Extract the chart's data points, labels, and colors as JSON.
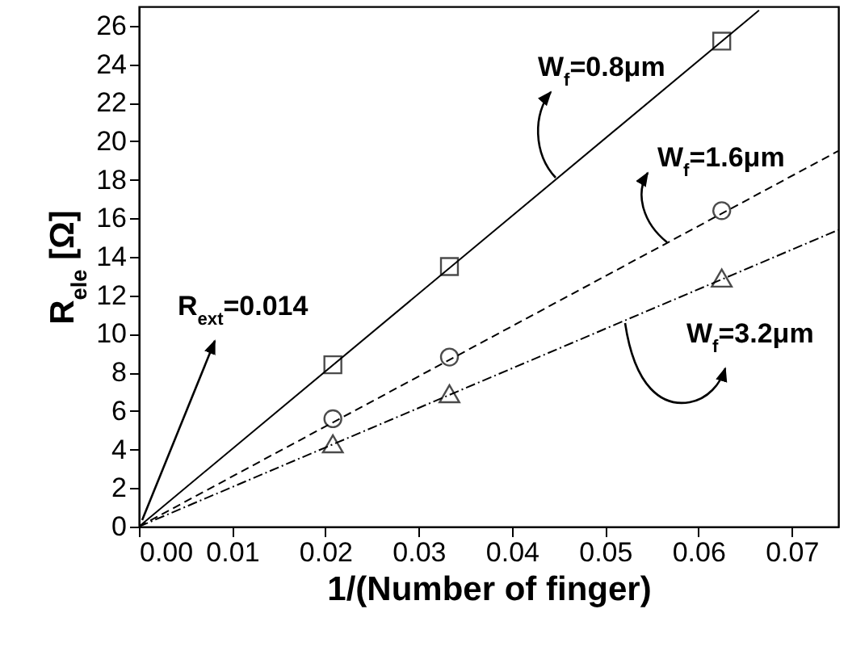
{
  "chart_data": {
    "type": "scatter",
    "xlabel": "1/(Number of finger)",
    "ylabel": "R$_{ele}$ [Ω]",
    "xlim": [
      0,
      0.075
    ],
    "ylim": [
      0,
      27
    ],
    "xticks": [
      {
        "value": 0,
        "label": "0.00"
      },
      {
        "value": 0.01,
        "label": "0.01"
      },
      {
        "value": 0.02,
        "label": "0.02"
      },
      {
        "value": 0.03,
        "label": "0.03"
      },
      {
        "value": 0.04,
        "label": "0.04"
      },
      {
        "value": 0.05,
        "label": "0.05"
      },
      {
        "value": 0.06,
        "label": "0.06"
      },
      {
        "value": 0.07,
        "label": "0.07"
      }
    ],
    "yticks": [
      0,
      2,
      4,
      6,
      8,
      10,
      12,
      14,
      16,
      18,
      20,
      22,
      24,
      26
    ],
    "grid": false,
    "series": [
      {
        "marker": "square",
        "color": "#000000",
        "x": [
          0.0208,
          0.0333,
          0.0625
        ],
        "values": [
          8.4,
          13.5,
          25.2
        ]
      },
      {
        "marker": "circle",
        "color": "#000000",
        "x": [
          0.0208,
          0.0333,
          0.0625
        ],
        "values": [
          5.6,
          8.8,
          16.4
        ]
      },
      {
        "marker": "triangle",
        "color": "#000000",
        "x": [
          0.0208,
          0.0333,
          0.0625
        ],
        "values": [
          4.3,
          6.9,
          12.9
        ]
      },
      {
        "type": "line",
        "line_style": "solid",
        "color": "#000000",
        "x": [
          0,
          0.0665
        ],
        "values": [
          0,
          26.8
        ]
      },
      {
        "type": "line",
        "line_style": "dashed",
        "color": "#000000",
        "x": [
          0,
          0.075
        ],
        "values": [
          0,
          19.5
        ]
      },
      {
        "type": "line",
        "line_style": "dotted",
        "color": "#000000",
        "x": [
          0,
          0.075
        ],
        "values": [
          0,
          15.4
        ]
      }
    ],
    "annotations": [
      "W$_{f}$=0.8μm",
      "W$_{f}$=1.6μm",
      "W$_{f}$=3.2μm",
      "R$_{ext}$=0.014"
    ]
  }
}
